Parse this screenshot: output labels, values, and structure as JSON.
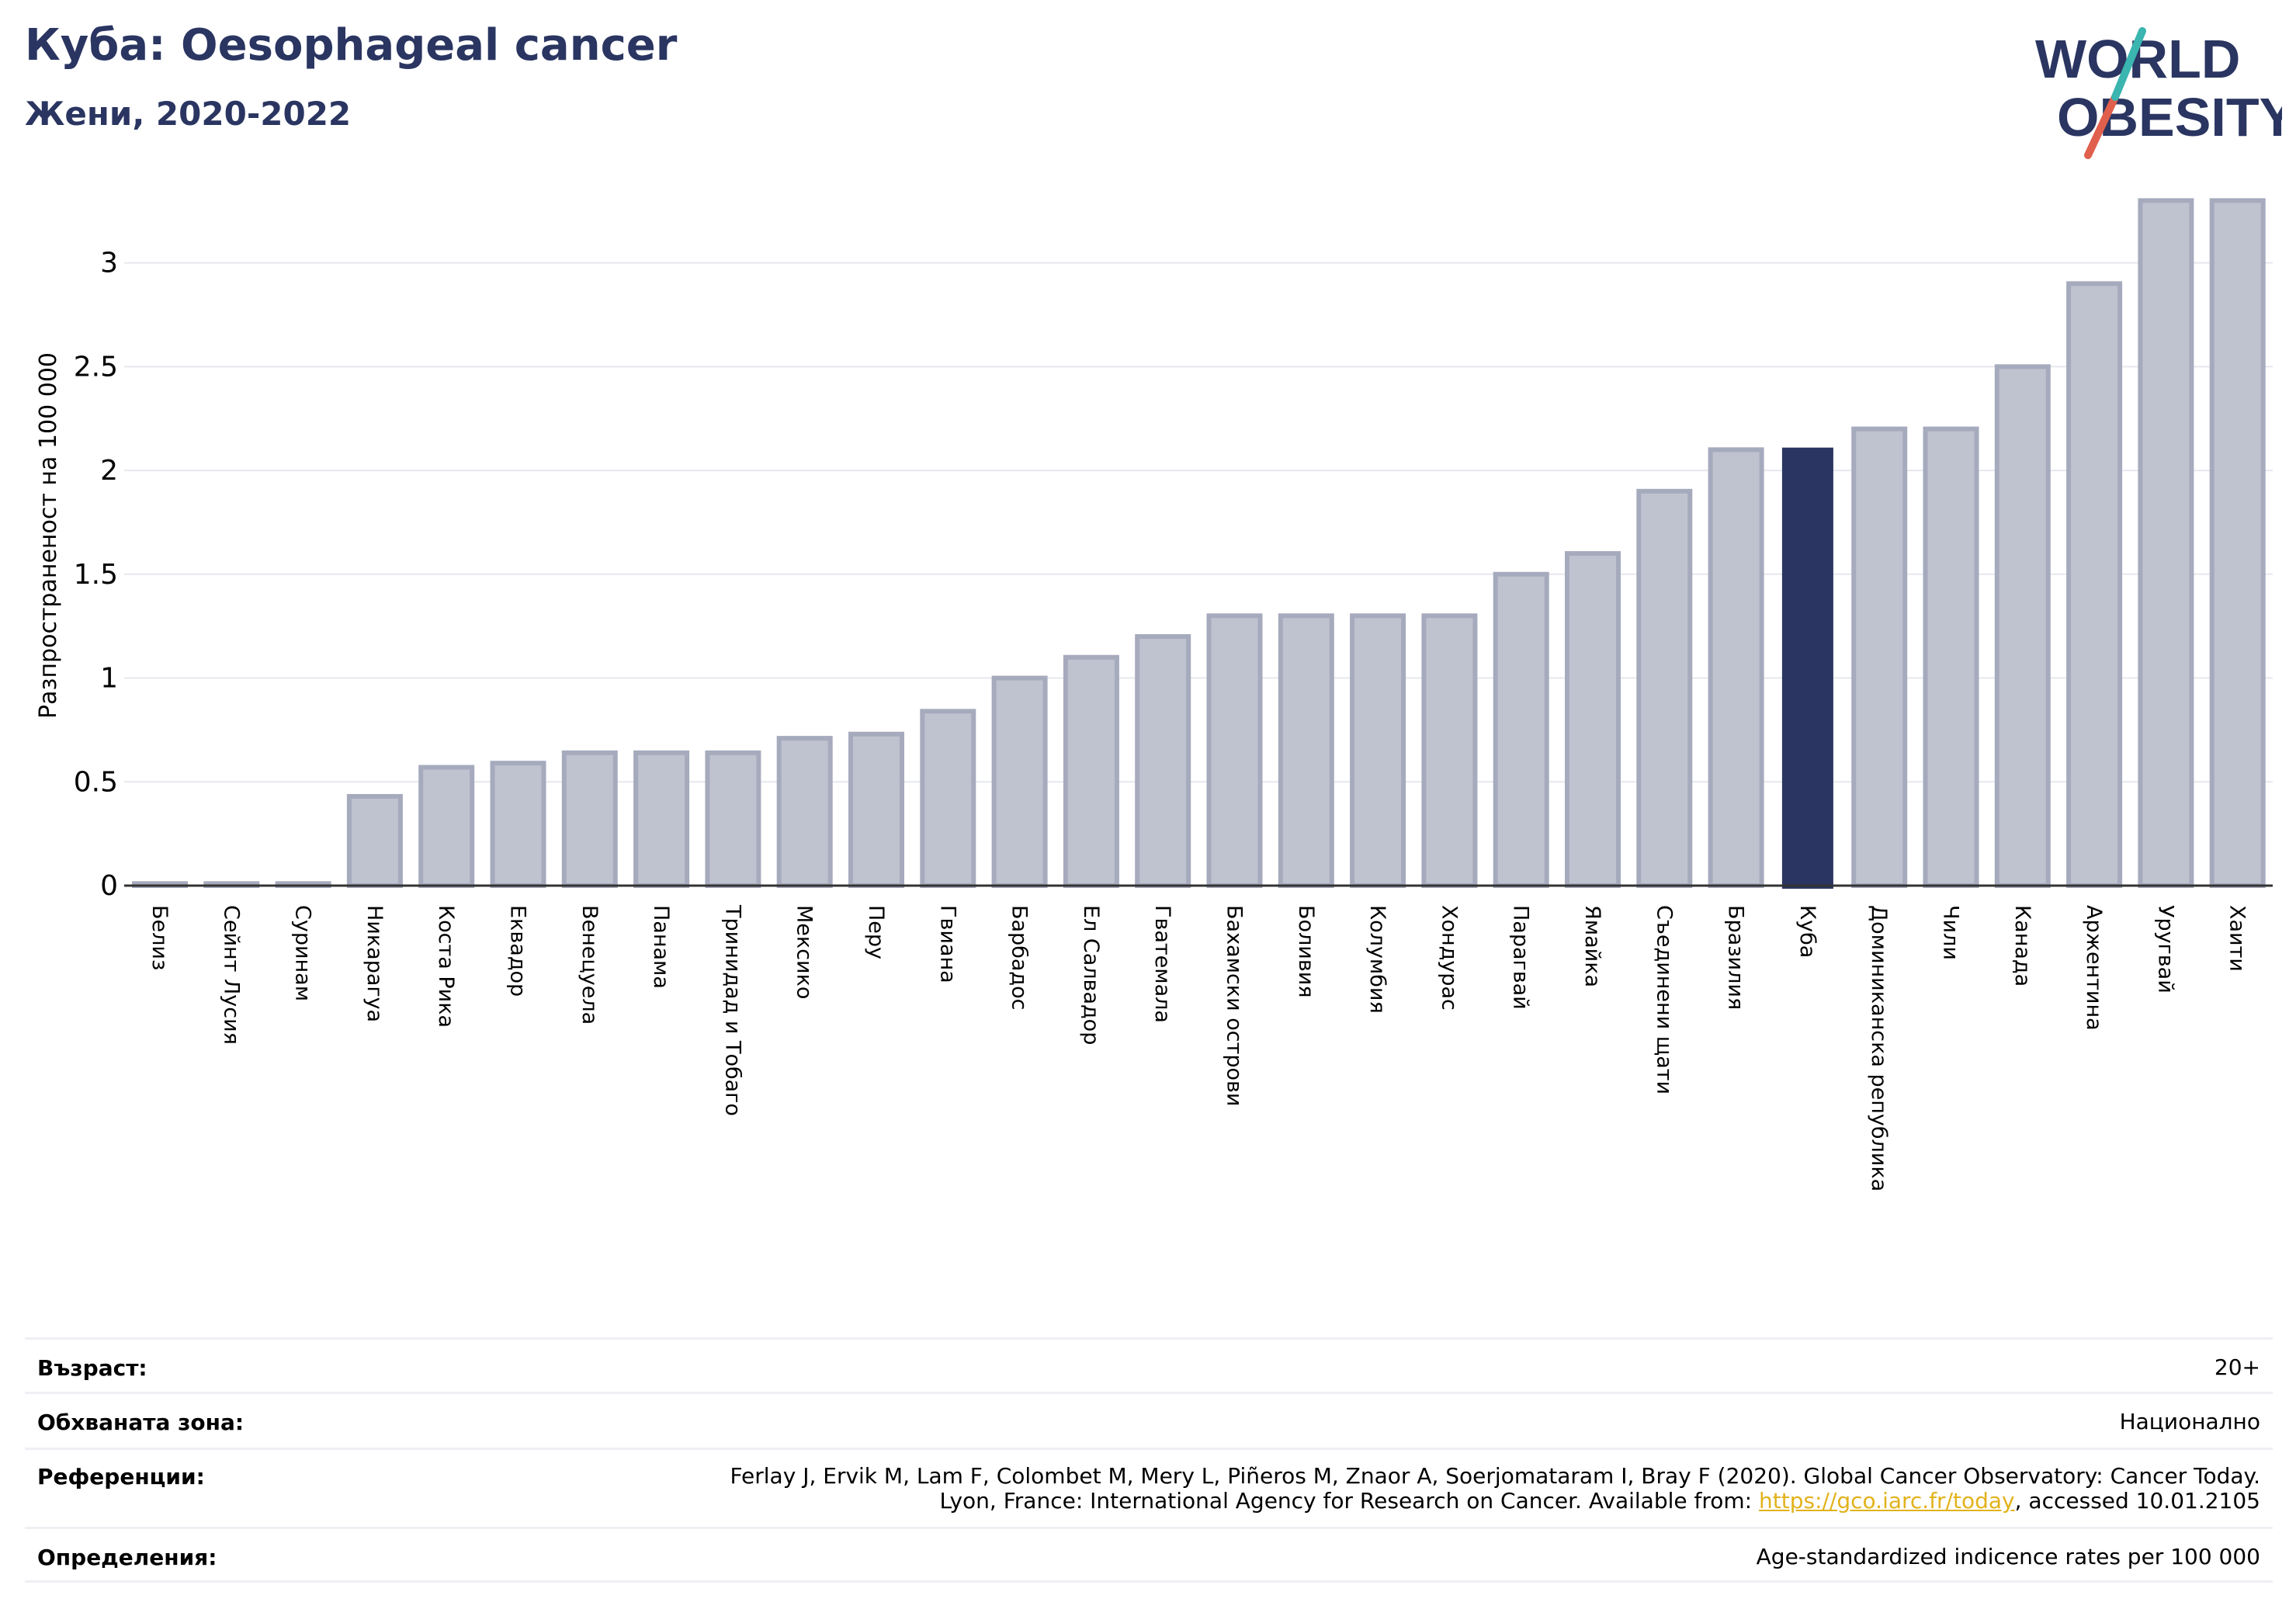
{
  "header": {
    "title": "Куба: Oesophageal cancer",
    "subtitle": "Жени, 2020-2022"
  },
  "logo": {
    "line1": "WORLD",
    "line2": "OBESITY"
  },
  "colors": {
    "highlight": "#2a3561",
    "bar_fill": "#bfc2cf",
    "bar_stroke": "#a6aabd",
    "logo_teal": "#3ab5b0",
    "logo_red": "#e0604d"
  },
  "chart_data": {
    "type": "bar",
    "title": "Куба: Oesophageal cancer",
    "subtitle": "Жени, 2020-2022",
    "xlabel": "",
    "ylabel": "Разпространеност  на 100 000",
    "ylim": [
      0,
      3.35
    ],
    "yticks": [
      0,
      0.5,
      1,
      1.5,
      2,
      2.5,
      3
    ],
    "ytick_labels": [
      "0",
      "0.5",
      "1",
      "1.5",
      "2",
      "2.5",
      "3"
    ],
    "grid": true,
    "highlight": "Куба",
    "categories": [
      "Белиз",
      "Сейнт Лусия",
      "Суринам",
      "Никарагуа",
      "Коста Рика",
      "Еквадор",
      "Венецуела",
      "Панама",
      "Тринидад и Тобаго",
      "Мексико",
      "Перу",
      "Гвиана",
      "Барбадос",
      "Ел Салвадор",
      "Гватемала",
      "Бахамски острови",
      "Боливия",
      "Колумбия",
      "Хондурас",
      "Парагвай",
      "Ямайка",
      "Съединени щати",
      "Бразилия",
      "Куба",
      "Доминиканска република",
      "Чили",
      "Канада",
      "Аржентина",
      "Уругвай",
      "Хаити"
    ],
    "values": [
      0.01,
      0.01,
      0.01,
      0.43,
      0.57,
      0.59,
      0.64,
      0.64,
      0.64,
      0.71,
      0.73,
      0.84,
      1.0,
      1.1,
      1.2,
      1.3,
      1.3,
      1.3,
      1.3,
      1.5,
      1.6,
      1.9,
      2.1,
      2.11,
      2.2,
      2.2,
      2.5,
      2.9,
      3.3,
      3.3
    ]
  },
  "info": [
    {
      "label": "Възраст:",
      "value": "20+"
    },
    {
      "label": "Обхваната зона:",
      "value": "Национално"
    },
    {
      "label": "Референции:",
      "value_line1": "Ferlay J, Ervik M, Lam F, Colombet M, Mery L, Piñeros M, Znaor A, Soerjomataram I, Bray F (2020). Global Cancer Observatory: Cancer Today.",
      "value_line2_prefix": "Lyon, France: International Agency for Research on Cancer. Available from: ",
      "link": "https://gco.iarc.fr/today",
      "value_line2_suffix": ", accessed 10.01.2105"
    },
    {
      "label": "Определения:",
      "value": "Age-standardized indicence rates per 100 000"
    }
  ]
}
